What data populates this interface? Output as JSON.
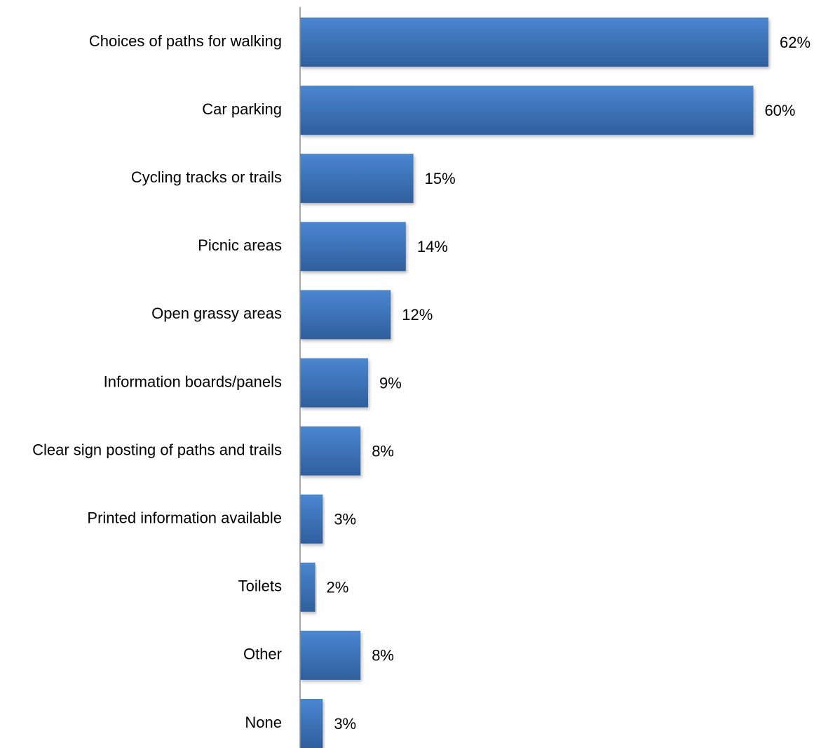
{
  "chart_data": {
    "type": "bar",
    "orientation": "horizontal",
    "categories": [
      "Choices of paths for walking",
      "Car parking",
      "Cycling tracks or trails",
      "Picnic areas",
      "Open grassy areas",
      "Information boards/panels",
      "Clear sign posting of paths and trails",
      "Printed information available",
      "Toilets",
      "Other",
      "None"
    ],
    "values": [
      62,
      60,
      15,
      14,
      12,
      9,
      8,
      3,
      2,
      8,
      3
    ],
    "value_labels": [
      "62%",
      "60%",
      "15%",
      "14%",
      "12%",
      "9%",
      "8%",
      "3%",
      "2%",
      "8%",
      "3%"
    ],
    "title": "",
    "xlabel": "",
    "ylabel": "",
    "xlim": [
      0,
      62
    ],
    "grid": false,
    "legend": "none",
    "bar_color": "#3a71b8",
    "bar_color_top": "#4a86d0",
    "bar_color_bottom": "#2f5f9d",
    "axis_color": "#8c8c8c"
  }
}
